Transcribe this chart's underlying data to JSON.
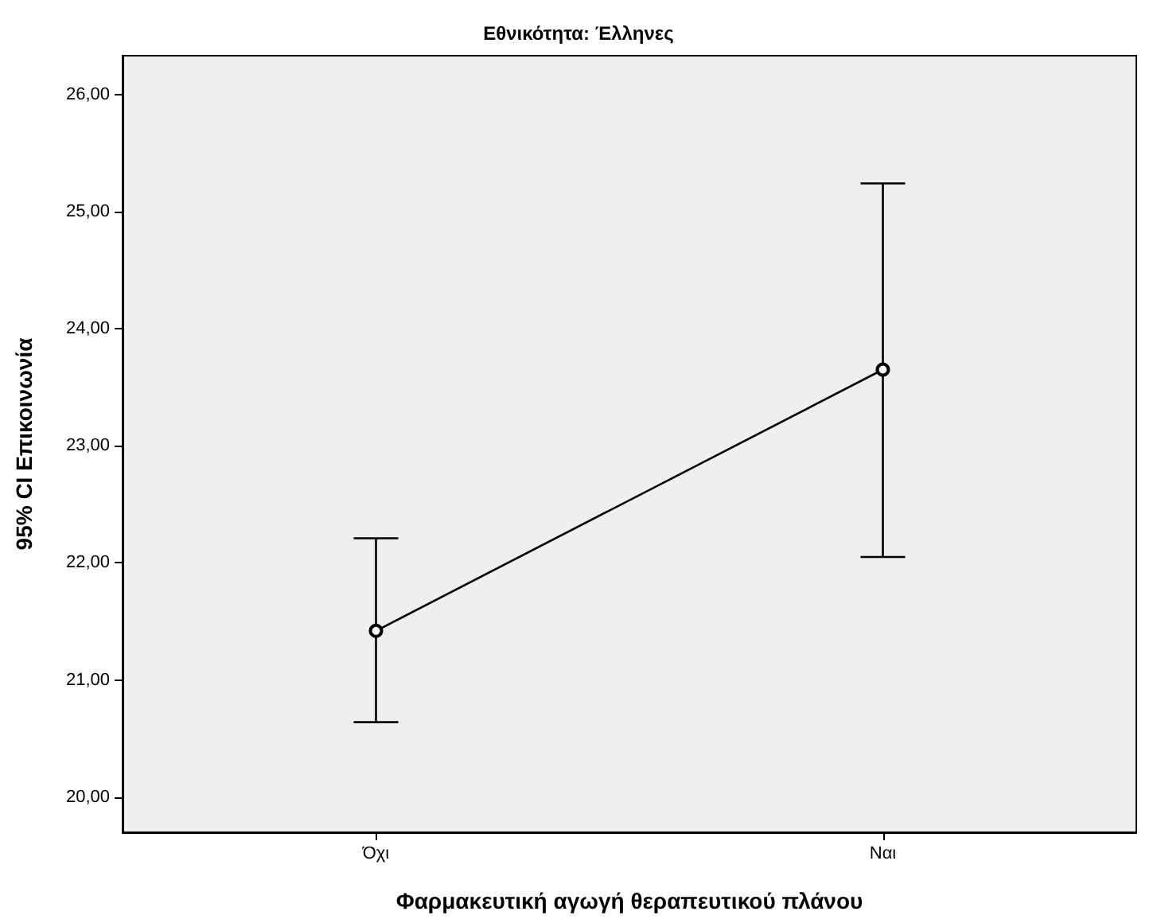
{
  "chart_data": {
    "type": "line",
    "title": "Εθνικότητα: Έλληνες",
    "xlabel": "Φαρμακευτική αγωγή θεραπευτικού πλάνου",
    "ylabel": "95% CI Επικοινωνία",
    "categories": [
      "Όχι",
      "Ναι"
    ],
    "values": [
      21.42,
      23.65
    ],
    "errors": [
      [
        20.64,
        22.21
      ],
      [
        22.05,
        25.24
      ]
    ],
    "color": "#000000",
    "marker": "circle",
    "line_style": "solid",
    "grid": false,
    "ylim": [
      19.7,
      26.33
    ],
    "yticks": [
      {
        "value": 20,
        "label": "20,00"
      },
      {
        "value": 21,
        "label": "21,00"
      },
      {
        "value": 22,
        "label": "22,00"
      },
      {
        "value": 23,
        "label": "23,00"
      },
      {
        "value": 24,
        "label": "24,00"
      },
      {
        "value": 25,
        "label": "25,00"
      },
      {
        "value": 26,
        "label": "26,00"
      }
    ]
  }
}
